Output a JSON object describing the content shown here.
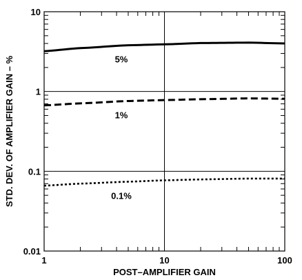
{
  "chart_data": {
    "type": "line",
    "xlabel": "POST–AMPLIFIER GAIN",
    "ylabel": "STD. DEV. OF AMPLIFIER GAIN – %",
    "x_scale": "log",
    "y_scale": "log",
    "xlim": [
      1,
      100
    ],
    "ylim": [
      0.01,
      10
    ],
    "x_ticks": [
      {
        "value": 1,
        "label": "1"
      },
      {
        "value": 10,
        "label": "10"
      },
      {
        "value": 100,
        "label": "100"
      }
    ],
    "y_ticks": [
      {
        "value": 10,
        "label": "10"
      },
      {
        "value": 1,
        "label": "1"
      },
      {
        "value": 0.1,
        "label": "0.1"
      },
      {
        "value": 0.01,
        "label": "0.01"
      }
    ],
    "grid": "major lines at decades",
    "series": [
      {
        "label": "5%",
        "line_style": "solid",
        "x": [
          1,
          2,
          5,
          10,
          20,
          50,
          100
        ],
        "y": [
          3.2,
          3.5,
          3.8,
          3.9,
          4.05,
          4.1,
          4.0
        ]
      },
      {
        "label": "1%",
        "line_style": "dashed",
        "x": [
          1,
          2,
          5,
          10,
          20,
          50,
          100
        ],
        "y": [
          0.67,
          0.71,
          0.76,
          0.78,
          0.8,
          0.82,
          0.81
        ]
      },
      {
        "label": "0.1%",
        "line_style": "dotted",
        "x": [
          1,
          2,
          5,
          10,
          20,
          50,
          100
        ],
        "y": [
          0.066,
          0.07,
          0.074,
          0.077,
          0.079,
          0.081,
          0.081
        ]
      }
    ]
  }
}
